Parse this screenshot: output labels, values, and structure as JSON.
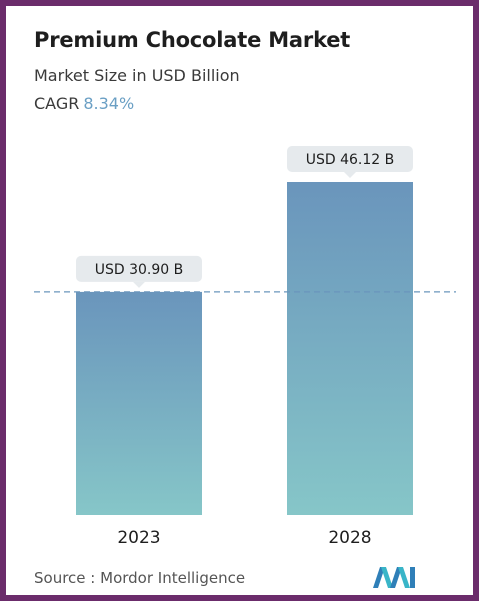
{
  "header": {
    "title": "Premium Chocolate Market",
    "subtitle": "Market Size in USD Billion",
    "cagr_label": "CAGR",
    "cagr_value": "8.34%"
  },
  "footer": {
    "source_label": "Source :",
    "source_value": "Mordor Intelligence",
    "logo_icon": "mordor-intelligence-logo-icon"
  },
  "colors": {
    "frame": "#6b2c6b",
    "bar_top": "#6a95bc",
    "bar_bottom": "#86c6c8",
    "cagr_accent": "#6a9fc4",
    "callout_bg": "#e6eaed",
    "dashed_line": "#6a95bc"
  },
  "chart_data": {
    "type": "bar",
    "categories": [
      "2023",
      "2028"
    ],
    "values": [
      30.9,
      46.12
    ],
    "data_labels": [
      "USD 30.90 B",
      "USD 46.12 B"
    ],
    "title": "Premium Chocolate Market",
    "subtitle": "Market Size in USD Billion",
    "xlabel": "",
    "ylabel": "",
    "ylim": [
      0,
      46.12
    ],
    "grid": false,
    "reference_line": {
      "value": 30.9,
      "style": "dashed"
    }
  }
}
